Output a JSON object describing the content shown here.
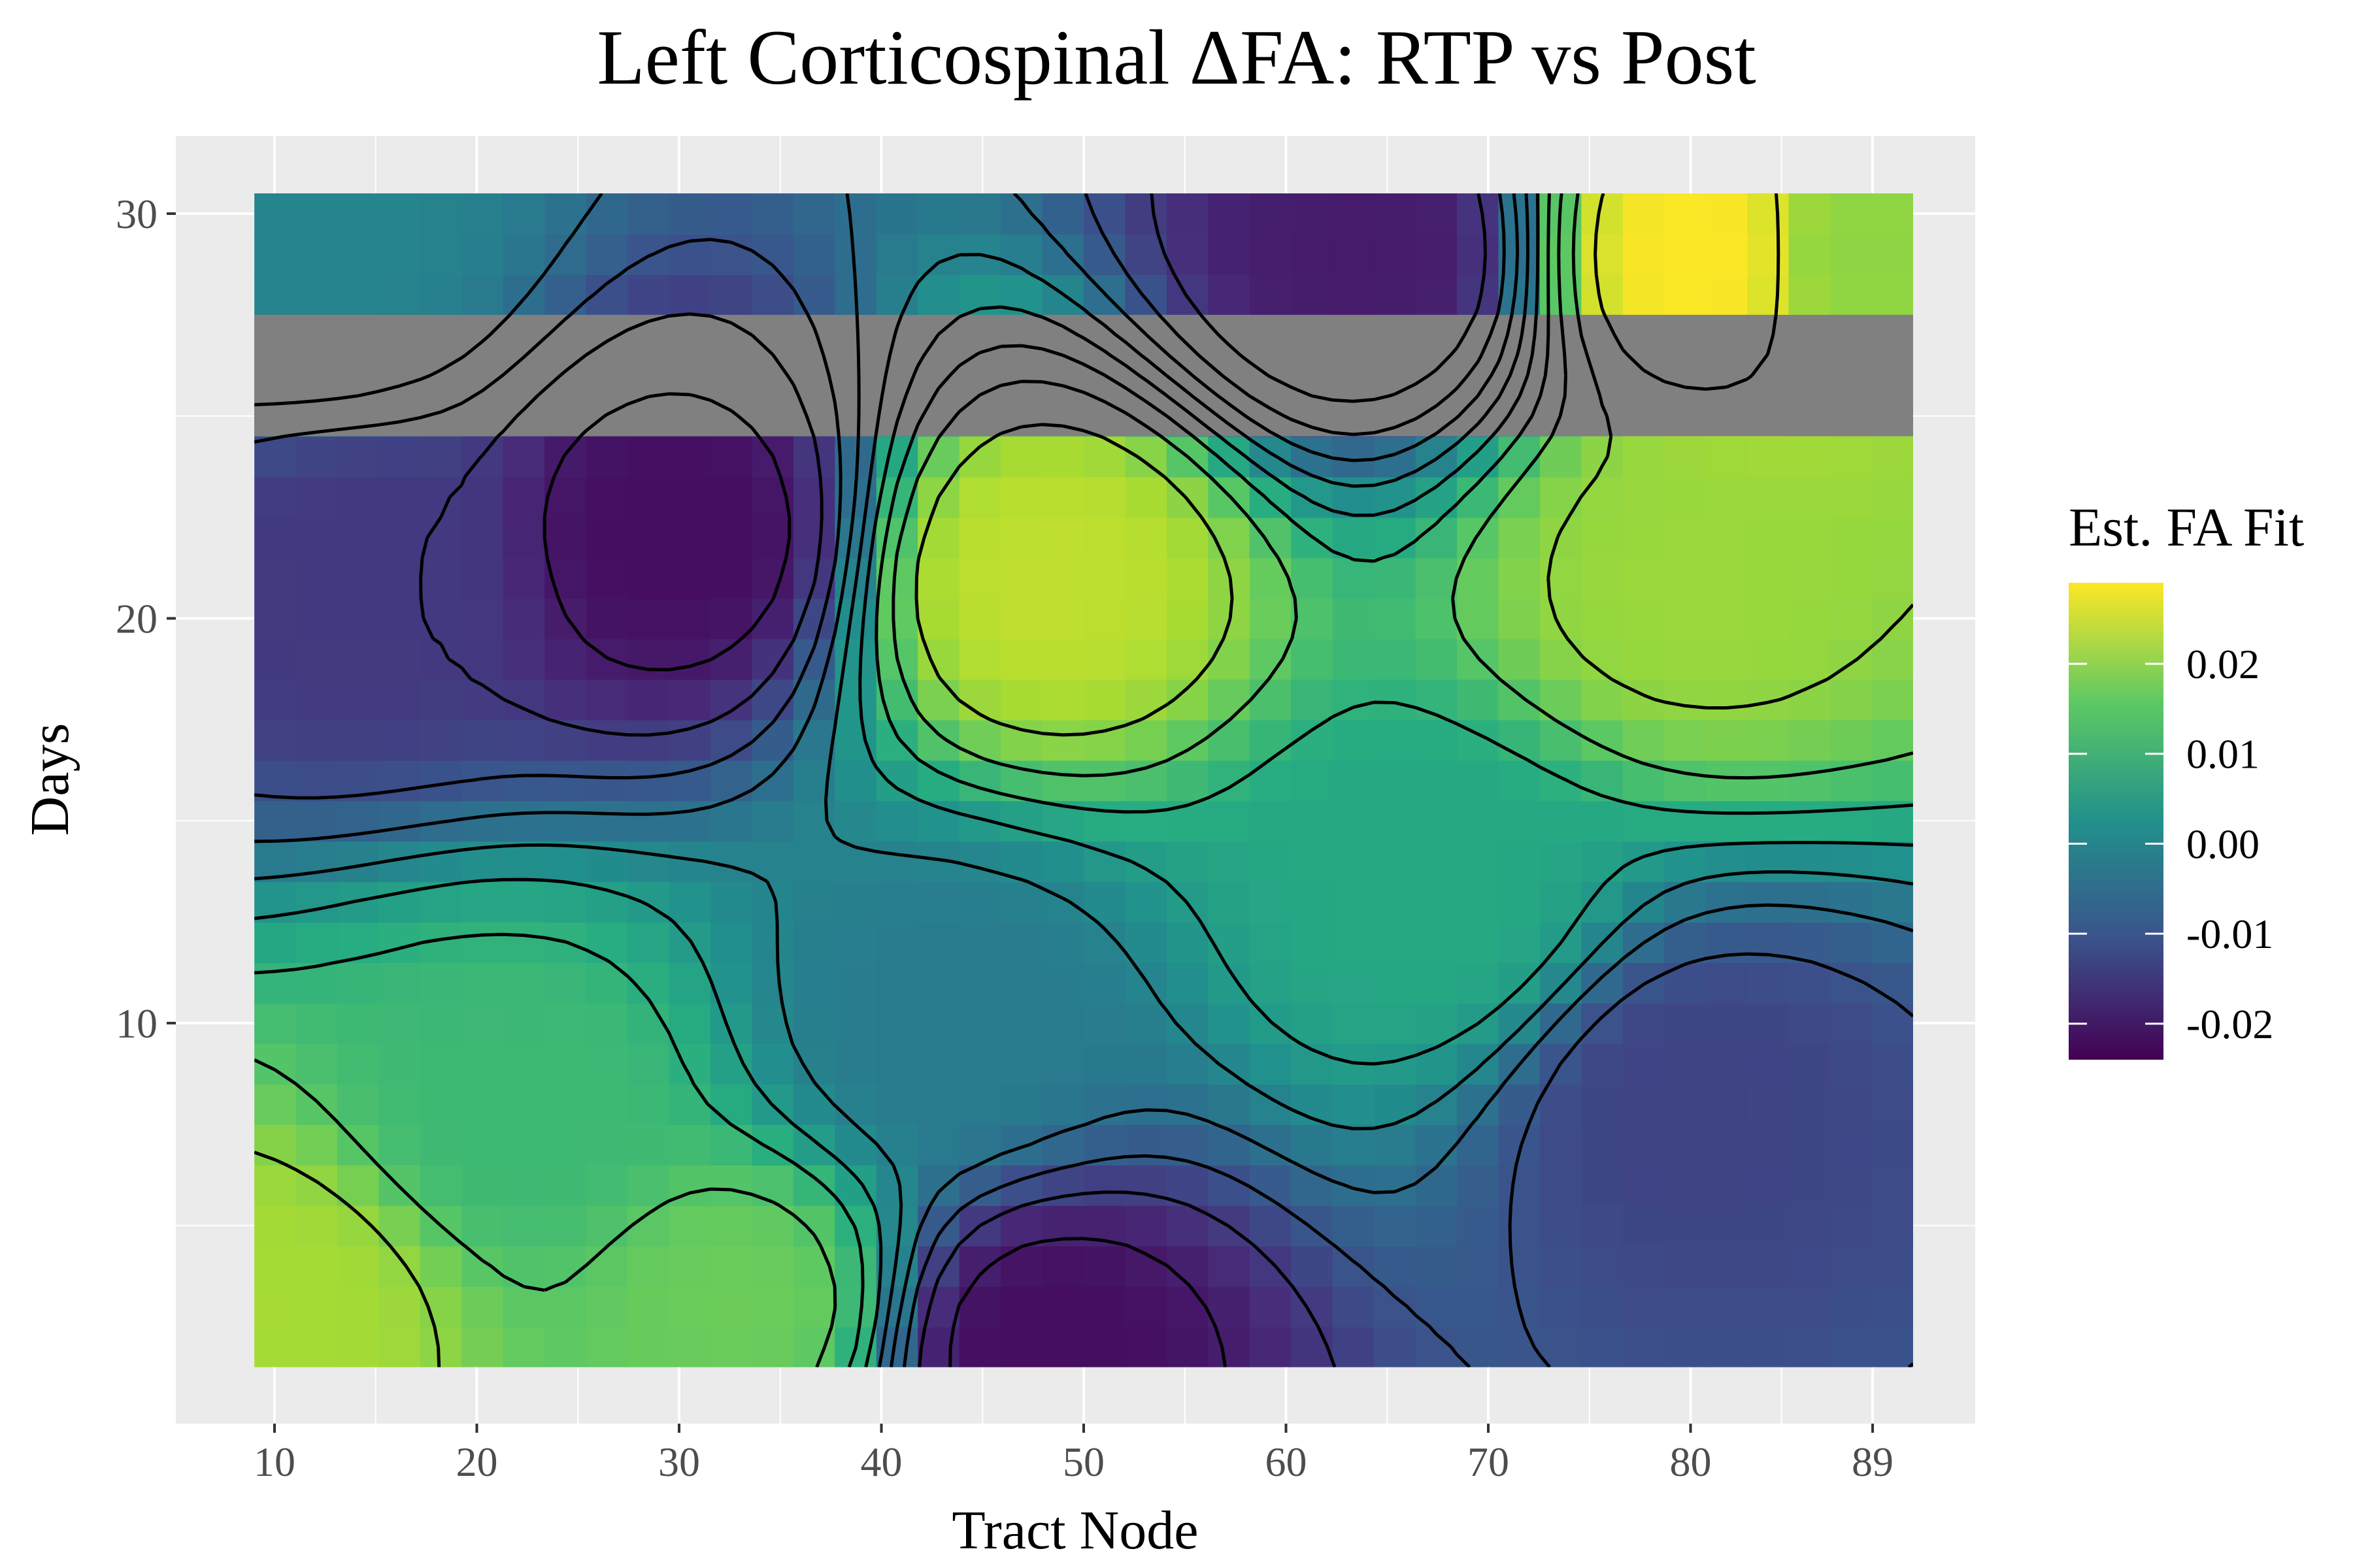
{
  "chart_data": {
    "type": "heatmap",
    "title": "Left Corticospinal ΔFA: RTP vs Post",
    "xlabel": "Tract Node",
    "ylabel": "Days",
    "xlim": [
      10,
      89
    ],
    "ylim": [
      2,
      30
    ],
    "x_ticks": [
      "10",
      "20",
      "30",
      "40",
      "50",
      "60",
      "70",
      "80",
      "89"
    ],
    "y_ticks": [
      "10",
      "20",
      "30"
    ],
    "missing_band_days": [
      25,
      27
    ],
    "grid": true,
    "contours": true,
    "colorscale": "viridis",
    "colorbar": {
      "title": "Est. FA Fit",
      "range": [
        -0.024,
        0.029
      ],
      "ticks": [
        "0.02",
        "0.01",
        "0.00",
        "-0.01",
        "-0.02"
      ]
    },
    "features": [
      {
        "node": 30,
        "day": 22,
        "value": -0.022
      },
      {
        "node": 48,
        "day": 21,
        "value": 0.024
      },
      {
        "node": 64,
        "day": 29,
        "value": -0.02
      },
      {
        "node": 81,
        "day": 29,
        "value": 0.029
      },
      {
        "node": 80,
        "day": 21,
        "value": 0.021
      },
      {
        "node": 12,
        "day": 29,
        "value": 0.0
      },
      {
        "node": 14,
        "day": 21,
        "value": -0.015
      },
      {
        "node": 22,
        "day": 8,
        "value": 0.012
      },
      {
        "node": 10,
        "day": 3,
        "value": 0.022
      },
      {
        "node": 33,
        "day": 3,
        "value": 0.017
      },
      {
        "node": 48,
        "day": 2,
        "value": -0.022
      },
      {
        "node": 67,
        "day": 13,
        "value": 0.008
      },
      {
        "node": 80,
        "day": 8,
        "value": -0.013
      },
      {
        "node": 88,
        "day": 29,
        "value": 0.02
      },
      {
        "node": 43,
        "day": 10,
        "value": -0.002
      }
    ]
  }
}
